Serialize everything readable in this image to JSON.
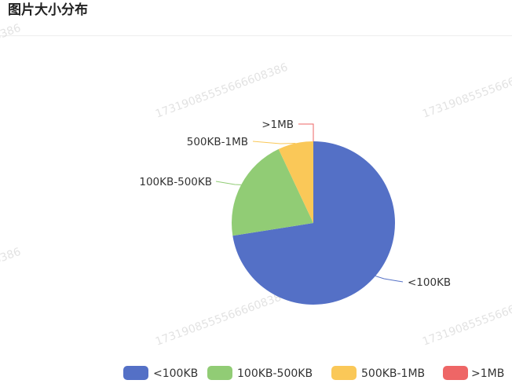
{
  "header": {
    "title": "图片大小分布"
  },
  "watermark": {
    "text": "17319085555666608386"
  },
  "chart_data": {
    "type": "pie",
    "title": "",
    "categories": [
      "<100KB",
      "100KB-500KB",
      "500KB-1MB",
      ">1MB"
    ],
    "values": [
      72.5,
      20.5,
      7.0,
      0.0
    ],
    "colors": [
      "#5470c6",
      "#91cc75",
      "#fac858",
      "#ee6666"
    ],
    "legend_position": "bottom-right",
    "start_angle_deg": 90,
    "clockwise": true
  }
}
